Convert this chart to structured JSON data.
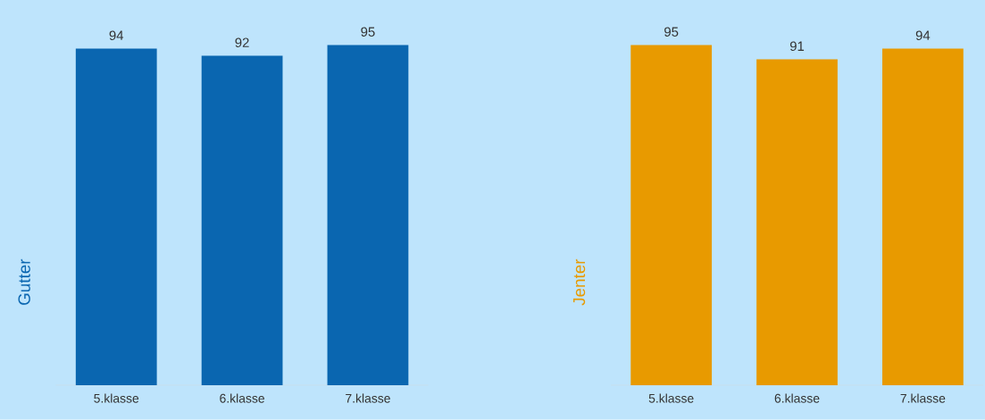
{
  "chart_data": [
    {
      "type": "bar",
      "ylabel": "Gutter",
      "categories": [
        "5.klasse",
        "6.klasse",
        "7.klasse"
      ],
      "values": [
        94,
        92,
        95
      ],
      "color": "#0a66b0",
      "data_labels": true
    },
    {
      "type": "bar",
      "ylabel": "Jenter",
      "categories": [
        "5.klasse",
        "6.klasse",
        "7.klasse"
      ],
      "values": [
        95,
        91,
        94
      ],
      "color": "#e89a00",
      "data_labels": true
    }
  ]
}
